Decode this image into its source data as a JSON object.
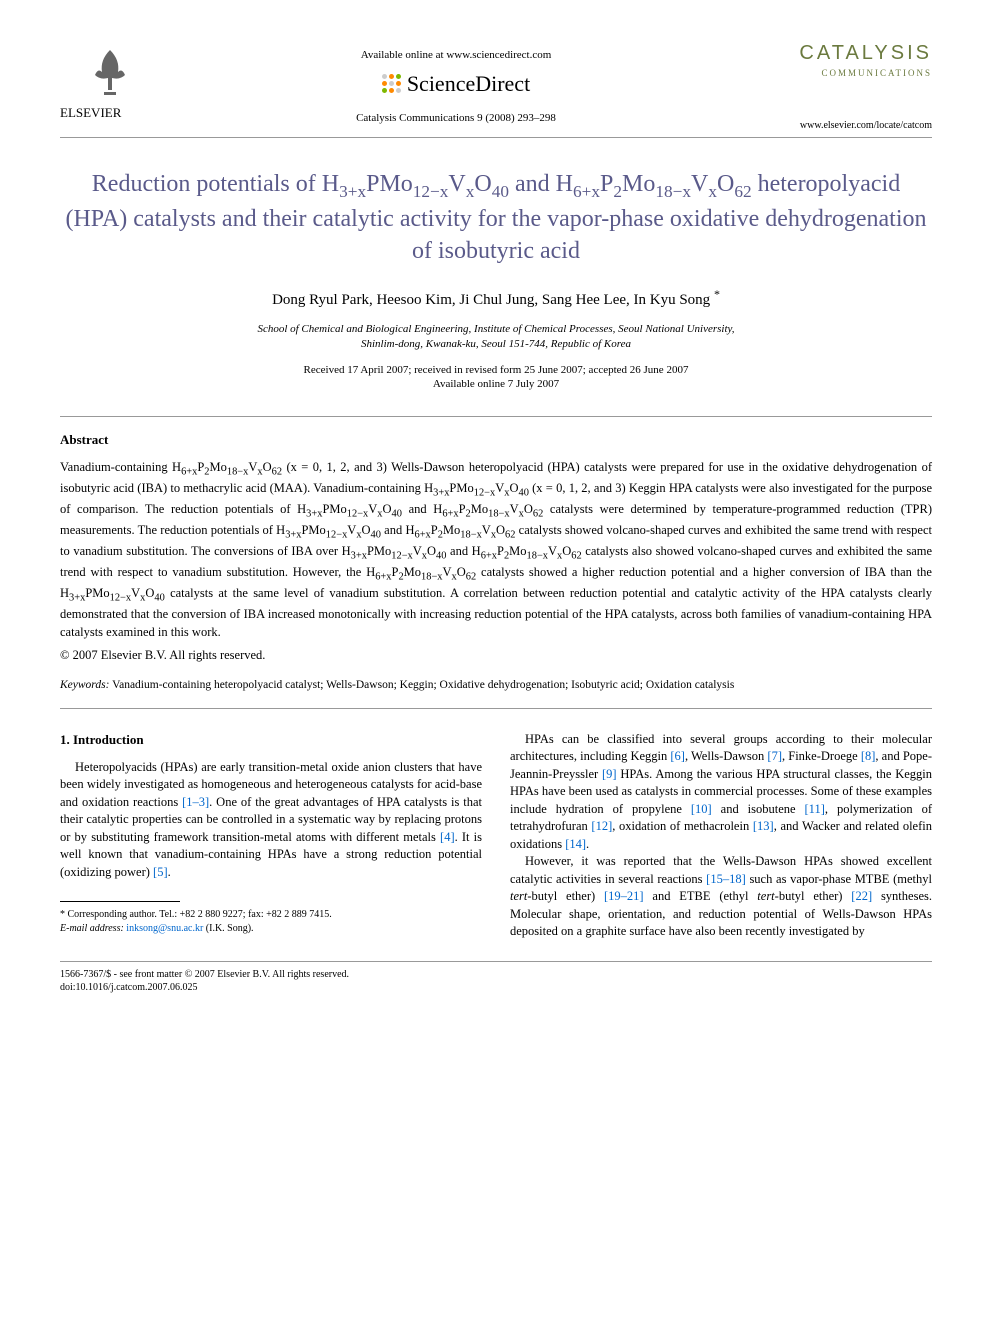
{
  "header": {
    "publisher": "ELSEVIER",
    "available_text": "Available online at www.sciencedirect.com",
    "sciencedirect": "ScienceDirect",
    "journal_ref": "Catalysis Communications 9 (2008) 293–298",
    "journal_name": "CATALYSIS",
    "journal_subtitle": "COMMUNICATIONS",
    "locate_url": "www.elsevier.com/locate/catcom"
  },
  "title_parts": {
    "p1": "Reduction potentials of H",
    "p2": "PMo",
    "p3": "V",
    "p4": "O",
    "p5": " and H",
    "p6": "P",
    "p7": "Mo",
    "p8": "V",
    "p9": "O",
    "p10": " heteropolyacid (HPA) catalysts and their catalytic activity for the vapor-phase oxidative dehydrogenation of isobutyric acid",
    "s1": "3+x",
    "s2": "12−x",
    "s3": "x",
    "s4": "40",
    "s5": "6+x",
    "s6": "2",
    "s7": "18−x",
    "s8": "x",
    "s9": "62"
  },
  "authors": "Dong Ryul Park, Heesoo Kim, Ji Chul Jung, Sang Hee Lee, In Kyu Song ",
  "corresponding_mark": "*",
  "affiliation_line1": "School of Chemical and Biological Engineering, Institute of Chemical Processes, Seoul National University,",
  "affiliation_line2": "Shinlim-dong, Kwanak-ku, Seoul 151-744, Republic of Korea",
  "dates_line1": "Received 17 April 2007; received in revised form 25 June 2007; accepted 26 June 2007",
  "dates_line2": "Available online 7 July 2007",
  "abstract": {
    "heading": "Abstract",
    "body_html": "Vanadium-containing H<sub>6+x</sub>P<sub>2</sub>Mo<sub>18−x</sub>V<sub>x</sub>O<sub>62</sub> (x = 0, 1, 2, and 3) Wells-Dawson heteropolyacid (HPA) catalysts were prepared for use in the oxidative dehydrogenation of isobutyric acid (IBA) to methacrylic acid (MAA). Vanadium-containing H<sub>3+x</sub>PMo<sub>12−x</sub>V<sub>x</sub>O<sub>40</sub> (x = 0, 1, 2, and 3) Keggin HPA catalysts were also investigated for the purpose of comparison. The reduction potentials of H<sub>3+x</sub>PMo<sub>12−x</sub>V<sub>x</sub>O<sub>40</sub> and H<sub>6+x</sub>P<sub>2</sub>Mo<sub>18−x</sub>V<sub>x</sub>O<sub>62</sub> catalysts were determined by temperature-programmed reduction (TPR) measurements. The reduction potentials of H<sub>3+x</sub>PMo<sub>12−x</sub>V<sub>x</sub>O<sub>40</sub> and H<sub>6+x</sub>P<sub>2</sub>Mo<sub>18−x</sub>V<sub>x</sub>O<sub>62</sub> catalysts showed volcano-shaped curves and exhibited the same trend with respect to vanadium substitution. The conversions of IBA over H<sub>3+x</sub>PMo<sub>12−x</sub>V<sub>x</sub>O<sub>40</sub> and H<sub>6+x</sub>P<sub>2</sub>Mo<sub>18−x</sub>V<sub>x</sub>O<sub>62</sub> catalysts also showed volcano-shaped curves and exhibited the same trend with respect to vanadium substitution. However, the H<sub>6+x</sub>P<sub>2</sub>Mo<sub>18−x</sub>V<sub>x</sub>O<sub>62</sub> catalysts showed a higher reduction potential and a higher conversion of IBA than the H<sub>3+x</sub>PMo<sub>12−x</sub>V<sub>x</sub>O<sub>40</sub> catalysts at the same level of vanadium substitution. A correlation between reduction potential and catalytic activity of the HPA catalysts clearly demonstrated that the conversion of IBA increased monotonically with increasing reduction potential of the HPA catalysts, across both families of vanadium-containing HPA catalysts examined in this work.",
    "copyright": "© 2007 Elsevier B.V. All rights reserved."
  },
  "keywords": {
    "label": "Keywords:",
    "text": " Vanadium-containing heteropolyacid catalyst; Wells-Dawson; Keggin; Oxidative dehydrogenation; Isobutyric acid; Oxidation catalysis"
  },
  "intro": {
    "heading": "1. Introduction",
    "col1_p1_html": "Heteropolyacids (HPAs) are early transition-metal oxide anion clusters that have been widely investigated as homogeneous and heterogeneous catalysts for acid-base and oxidation reactions <span class='ref'>[1–3]</span>. One of the great advantages of HPA catalysts is that their catalytic properties can be controlled in a systematic way by replacing protons or by substituting framework transition-metal atoms with different metals <span class='ref'>[4]</span>. It is well known that vanadium-containing HPAs have a strong reduction potential (oxidizing power) <span class='ref'>[5]</span>.",
    "col2_p1_html": "HPAs can be classified into several groups according to their molecular architectures, including Keggin <span class='ref'>[6]</span>, Wells-Dawson <span class='ref'>[7]</span>, Finke-Droege <span class='ref'>[8]</span>, and Pope-Jeannin-Preyssler <span class='ref'>[9]</span> HPAs. Among the various HPA structural classes, the Keggin HPAs have been used as catalysts in commercial processes. Some of these examples include hydration of propylene <span class='ref'>[10]</span> and isobutene <span class='ref'>[11]</span>, polymerization of tetrahydrofuran <span class='ref'>[12]</span>, oxidation of methacrolein <span class='ref'>[13]</span>, and Wacker and related olefin oxidations <span class='ref'>[14]</span>.",
    "col2_p2_html": "However, it was reported that the Wells-Dawson HPAs showed excellent catalytic activities in several reactions <span class='ref'>[15–18]</span> such as vapor-phase MTBE (methyl <i>tert</i>-butyl ether) <span class='ref'>[19–21]</span> and ETBE (ethyl <i>tert</i>-butyl ether) <span class='ref'>[22]</span> syntheses. Molecular shape, orientation, and reduction potential of Wells-Dawson HPAs deposited on a graphite surface have also been recently investigated by"
  },
  "footnote": {
    "corr_label": "* Corresponding author. Tel.: +82 2 880 9227; fax: +82 2 889 7415.",
    "email_label": "E-mail address:",
    "email": "inksong@snu.ac.kr",
    "email_name": " (I.K. Song)."
  },
  "bottom": {
    "issn": "1566-7367/$ - see front matter © 2007 Elsevier B.V. All rights reserved.",
    "doi": "doi:10.1016/j.catcom.2007.06.025"
  },
  "colors": {
    "title": "#5a5a8a",
    "link": "#0066cc",
    "journal": "#6b7a3f",
    "sd_orange": "#ff8a00",
    "sd_green": "#7fb800",
    "sd_gray": "#cccccc"
  }
}
